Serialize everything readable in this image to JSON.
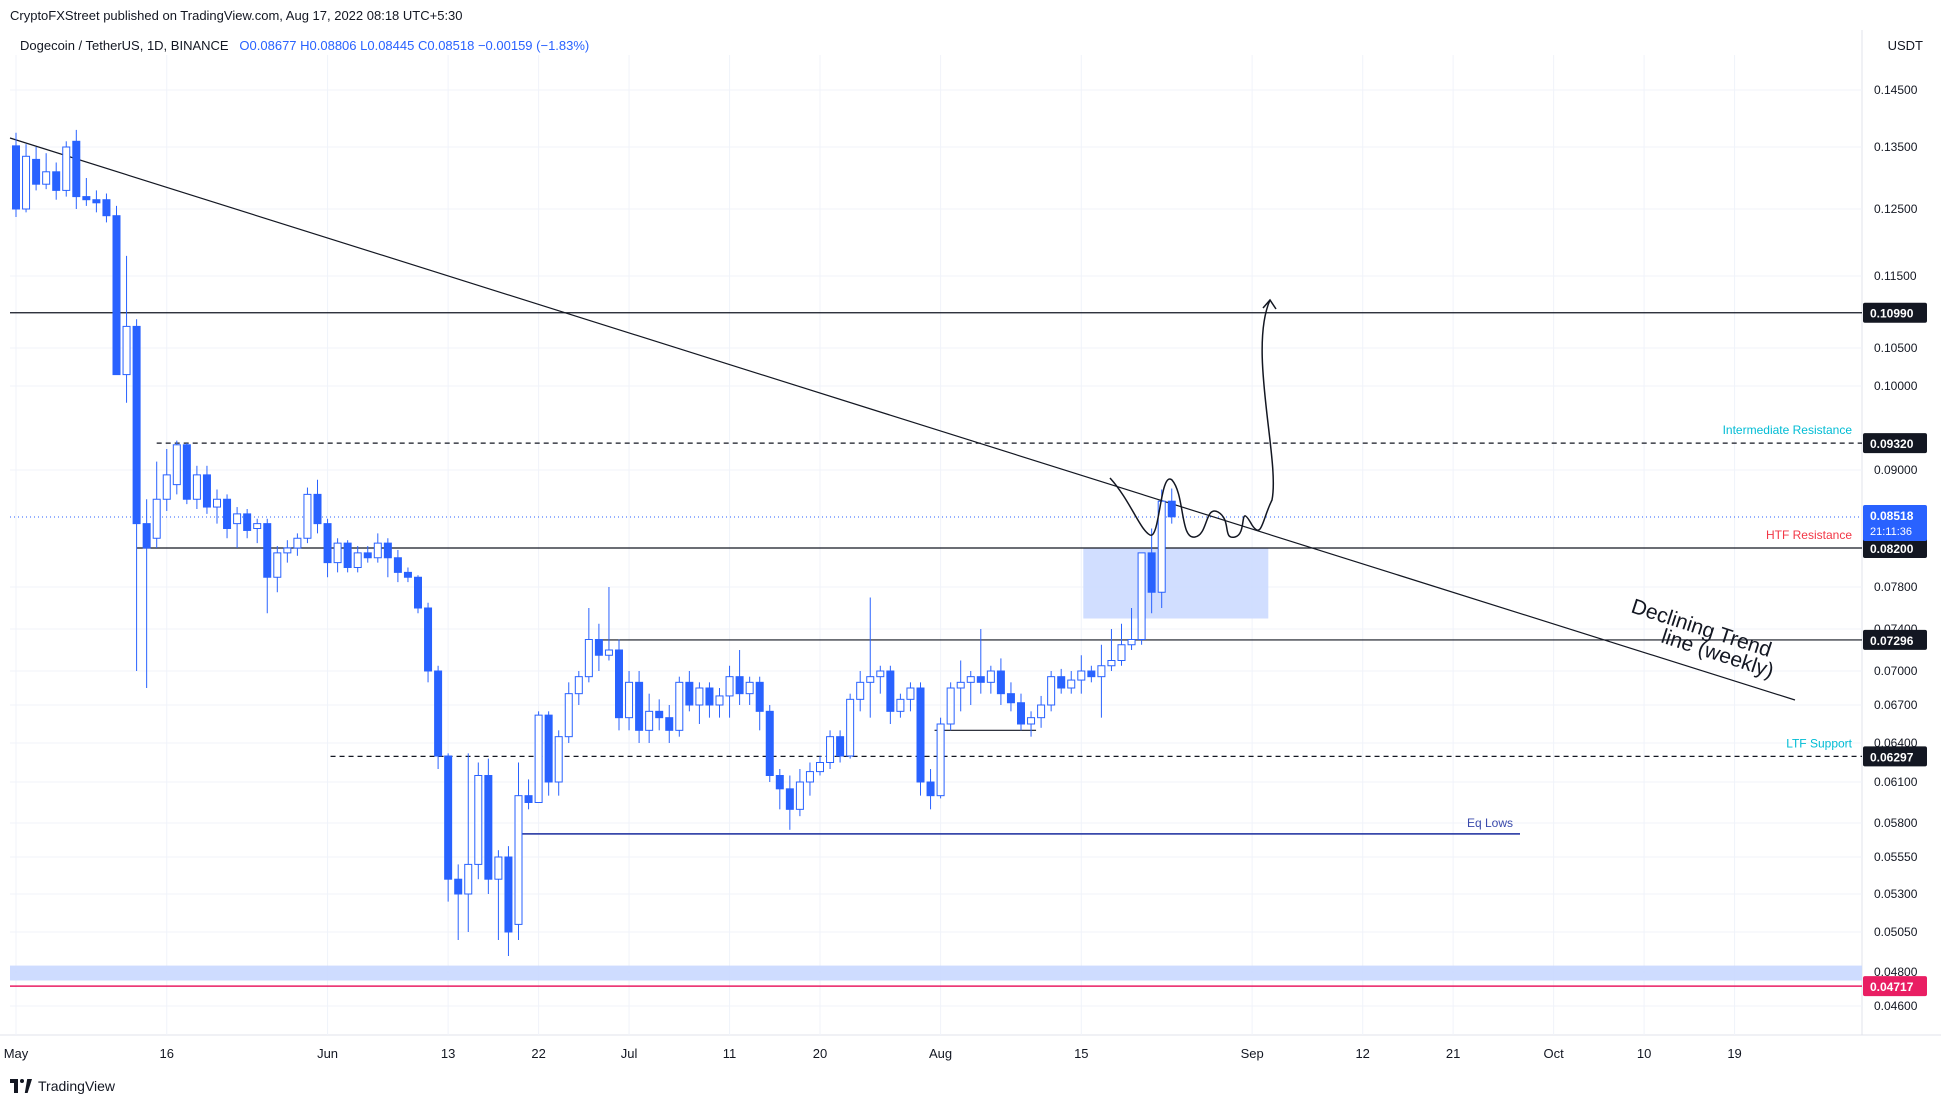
{
  "header": {
    "published": "CryptoFXStreet published on TradingView.com, Aug 17, 2022 08:18 UTC+5:30",
    "symbol": "Dogecoin / TetherUS, 1D, BINANCE",
    "ohlc": "O0.08677  H0.08806  L0.08445  C0.08518  −0.00159 (−1.83%)",
    "currency": "USDT"
  },
  "footer": {
    "brand": "TradingView",
    "logo_icon": "tradingview-logo-icon"
  },
  "colors": {
    "up": "#2962ff",
    "down": "#2962ff",
    "grid": "#f0f3fa",
    "text": "#131722",
    "support_label": "#00bcd4",
    "htf_label": "#f23645",
    "low_zone": "#c9d8ff",
    "eq_lows": "#3949ab",
    "red_level": "#e91e63",
    "last_price": "#2962ff"
  },
  "chart_data": {
    "type": "candlestick",
    "axis_ticks": [
      "0.14500",
      "0.13500",
      "0.12500",
      "0.11500",
      "0.10500",
      "0.10000",
      "0.09000",
      "0.07800",
      "0.07400",
      "0.07000",
      "0.06700",
      "0.06400",
      "0.06100",
      "0.05800",
      "0.05550",
      "0.05300",
      "0.05050",
      "0.04800",
      "0.04600"
    ],
    "x_ticks": [
      {
        "label": "May",
        "date": "2022-05-01"
      },
      {
        "label": "16",
        "date": "2022-05-16"
      },
      {
        "label": "Jun",
        "date": "2022-06-01"
      },
      {
        "label": "13",
        "date": "2022-06-13"
      },
      {
        "label": "22",
        "date": "2022-06-22"
      },
      {
        "label": "Jul",
        "date": "2022-07-01"
      },
      {
        "label": "11",
        "date": "2022-07-11"
      },
      {
        "label": "20",
        "date": "2022-07-20"
      },
      {
        "label": "Aug",
        "date": "2022-08-01"
      },
      {
        "label": "15",
        "date": "2022-08-15"
      },
      {
        "label": "Sep",
        "date": "2022-09-01"
      },
      {
        "label": "12",
        "date": "2022-09-12"
      },
      {
        "label": "21",
        "date": "2022-09-21"
      },
      {
        "label": "Oct",
        "date": "2022-10-01"
      },
      {
        "label": "10",
        "date": "2022-10-10"
      },
      {
        "label": "19",
        "date": "2022-10-19"
      }
    ],
    "levels": [
      {
        "value": "0.10990",
        "price": 0.1099,
        "style": "solid",
        "color": "#131722"
      },
      {
        "value": "0.09320",
        "price": 0.0932,
        "style": "dashed",
        "color": "#131722",
        "label": "Intermediate Resistance",
        "label_color": "#00bcd4"
      },
      {
        "value": "0.08200",
        "price": 0.082,
        "style": "solid",
        "color": "#131722",
        "label": "HTF Resistance",
        "label_color": "#f23645"
      },
      {
        "value": "0.07296",
        "price": 0.07296,
        "style": "solid",
        "color": "#131722"
      },
      {
        "value": "0.06297",
        "price": 0.06297,
        "style": "dashed",
        "color": "#131722",
        "label": "LTF Support",
        "label_color": "#00bcd4"
      },
      {
        "value": "0.04717",
        "price": 0.04717,
        "style": "solid",
        "color": "#e91e63"
      }
    ],
    "last_price": {
      "value": "0.08518",
      "countdown": "21:11:36",
      "price": 0.08518
    },
    "annotations": {
      "trendline_label_1": "Declining Trend",
      "trendline_label_2": "line (weekly)",
      "eq_lows": "Eq Lows"
    },
    "candles": [
      {
        "date": "2022-05-01",
        "o": 0.1352,
        "h": 0.1375,
        "l": 0.1238,
        "c": 0.125
      },
      {
        "date": "2022-05-02",
        "o": 0.125,
        "h": 0.1355,
        "l": 0.1245,
        "c": 0.1335
      },
      {
        "date": "2022-05-03",
        "o": 0.133,
        "h": 0.135,
        "l": 0.128,
        "c": 0.129
      },
      {
        "date": "2022-05-04",
        "o": 0.129,
        "h": 0.134,
        "l": 0.1282,
        "c": 0.131
      },
      {
        "date": "2022-05-05",
        "o": 0.131,
        "h": 0.1325,
        "l": 0.1265,
        "c": 0.128
      },
      {
        "date": "2022-05-06",
        "o": 0.128,
        "h": 0.136,
        "l": 0.127,
        "c": 0.135
      },
      {
        "date": "2022-05-07",
        "o": 0.136,
        "h": 0.138,
        "l": 0.125,
        "c": 0.127
      },
      {
        "date": "2022-05-08",
        "o": 0.127,
        "h": 0.13,
        "l": 0.1255,
        "c": 0.1265
      },
      {
        "date": "2022-05-09",
        "o": 0.1265,
        "h": 0.128,
        "l": 0.1245,
        "c": 0.126
      },
      {
        "date": "2022-05-10",
        "o": 0.1265,
        "h": 0.1275,
        "l": 0.123,
        "c": 0.124
      },
      {
        "date": "2022-05-11",
        "o": 0.124,
        "h": 0.1255,
        "l": 0.102,
        "c": 0.1015
      },
      {
        "date": "2022-05-12",
        "o": 0.1015,
        "h": 0.118,
        "l": 0.098,
        "c": 0.108
      },
      {
        "date": "2022-05-13",
        "o": 0.108,
        "h": 0.109,
        "l": 0.07,
        "c": 0.0845
      },
      {
        "date": "2022-05-14",
        "o": 0.0845,
        "h": 0.087,
        "l": 0.0685,
        "c": 0.082
      },
      {
        "date": "2022-05-15",
        "o": 0.083,
        "h": 0.091,
        "l": 0.082,
        "c": 0.087
      },
      {
        "date": "2022-05-16",
        "o": 0.087,
        "h": 0.0925,
        "l": 0.0858,
        "c": 0.0895
      },
      {
        "date": "2022-05-17",
        "o": 0.0885,
        "h": 0.0935,
        "l": 0.0875,
        "c": 0.093
      },
      {
        "date": "2022-05-18",
        "o": 0.093,
        "h": 0.0932,
        "l": 0.0865,
        "c": 0.087
      },
      {
        "date": "2022-05-19",
        "o": 0.087,
        "h": 0.0905,
        "l": 0.086,
        "c": 0.0895
      },
      {
        "date": "2022-05-20",
        "o": 0.0895,
        "h": 0.0905,
        "l": 0.0855,
        "c": 0.0862
      },
      {
        "date": "2022-05-21",
        "o": 0.0862,
        "h": 0.088,
        "l": 0.0845,
        "c": 0.087
      },
      {
        "date": "2022-05-22",
        "o": 0.087,
        "h": 0.0875,
        "l": 0.083,
        "c": 0.084
      },
      {
        "date": "2022-05-23",
        "o": 0.0845,
        "h": 0.0862,
        "l": 0.082,
        "c": 0.0855
      },
      {
        "date": "2022-05-24",
        "o": 0.0855,
        "h": 0.086,
        "l": 0.083,
        "c": 0.0838
      },
      {
        "date": "2022-05-25",
        "o": 0.084,
        "h": 0.085,
        "l": 0.0825,
        "c": 0.0845
      },
      {
        "date": "2022-05-26",
        "o": 0.0845,
        "h": 0.085,
        "l": 0.0755,
        "c": 0.079
      },
      {
        "date": "2022-05-27",
        "o": 0.079,
        "h": 0.0822,
        "l": 0.0775,
        "c": 0.0815
      },
      {
        "date": "2022-05-28",
        "o": 0.0815,
        "h": 0.0828,
        "l": 0.0805,
        "c": 0.082
      },
      {
        "date": "2022-05-29",
        "o": 0.082,
        "h": 0.0835,
        "l": 0.0812,
        "c": 0.083
      },
      {
        "date": "2022-05-30",
        "o": 0.083,
        "h": 0.0882,
        "l": 0.0825,
        "c": 0.0875
      },
      {
        "date": "2022-05-31",
        "o": 0.0875,
        "h": 0.089,
        "l": 0.0835,
        "c": 0.0845
      },
      {
        "date": "2022-06-01",
        "o": 0.0845,
        "h": 0.085,
        "l": 0.079,
        "c": 0.0805
      },
      {
        "date": "2022-06-02",
        "o": 0.0805,
        "h": 0.083,
        "l": 0.0795,
        "c": 0.0825
      },
      {
        "date": "2022-06-03",
        "o": 0.0825,
        "h": 0.0828,
        "l": 0.0795,
        "c": 0.08
      },
      {
        "date": "2022-06-04",
        "o": 0.08,
        "h": 0.0822,
        "l": 0.0795,
        "c": 0.0815
      },
      {
        "date": "2022-06-05",
        "o": 0.0815,
        "h": 0.0822,
        "l": 0.0805,
        "c": 0.081
      },
      {
        "date": "2022-06-06",
        "o": 0.081,
        "h": 0.0835,
        "l": 0.0805,
        "c": 0.0825
      },
      {
        "date": "2022-06-07",
        "o": 0.0825,
        "h": 0.083,
        "l": 0.079,
        "c": 0.081
      },
      {
        "date": "2022-06-08",
        "o": 0.081,
        "h": 0.0818,
        "l": 0.0785,
        "c": 0.0795
      },
      {
        "date": "2022-06-09",
        "o": 0.0795,
        "h": 0.08,
        "l": 0.0785,
        "c": 0.079
      },
      {
        "date": "2022-06-10",
        "o": 0.079,
        "h": 0.0792,
        "l": 0.0755,
        "c": 0.076
      },
      {
        "date": "2022-06-11",
        "o": 0.076,
        "h": 0.0765,
        "l": 0.069,
        "c": 0.07
      },
      {
        "date": "2022-06-12",
        "o": 0.07,
        "h": 0.0705,
        "l": 0.062,
        "c": 0.063
      },
      {
        "date": "2022-06-13",
        "o": 0.063,
        "h": 0.0632,
        "l": 0.0525,
        "c": 0.054
      },
      {
        "date": "2022-06-14",
        "o": 0.054,
        "h": 0.055,
        "l": 0.05,
        "c": 0.053
      },
      {
        "date": "2022-06-15",
        "o": 0.053,
        "h": 0.0632,
        "l": 0.0505,
        "c": 0.055
      },
      {
        "date": "2022-06-16",
        "o": 0.055,
        "h": 0.0625,
        "l": 0.054,
        "c": 0.0615
      },
      {
        "date": "2022-06-17",
        "o": 0.0615,
        "h": 0.0628,
        "l": 0.053,
        "c": 0.054
      },
      {
        "date": "2022-06-18",
        "o": 0.054,
        "h": 0.056,
        "l": 0.05,
        "c": 0.0555
      },
      {
        "date": "2022-06-19",
        "o": 0.0555,
        "h": 0.0563,
        "l": 0.049,
        "c": 0.0505
      },
      {
        "date": "2022-06-20",
        "o": 0.051,
        "h": 0.0625,
        "l": 0.05,
        "c": 0.06
      },
      {
        "date": "2022-06-21",
        "o": 0.06,
        "h": 0.0612,
        "l": 0.059,
        "c": 0.0595
      },
      {
        "date": "2022-06-22",
        "o": 0.0595,
        "h": 0.0665,
        "l": 0.0595,
        "c": 0.0662
      },
      {
        "date": "2022-06-23",
        "o": 0.0662,
        "h": 0.0665,
        "l": 0.06,
        "c": 0.061
      },
      {
        "date": "2022-06-24",
        "o": 0.061,
        "h": 0.065,
        "l": 0.06,
        "c": 0.0645
      },
      {
        "date": "2022-06-25",
        "o": 0.0645,
        "h": 0.069,
        "l": 0.064,
        "c": 0.068
      },
      {
        "date": "2022-06-26",
        "o": 0.068,
        "h": 0.07,
        "l": 0.067,
        "c": 0.0695
      },
      {
        "date": "2022-06-27",
        "o": 0.0695,
        "h": 0.076,
        "l": 0.069,
        "c": 0.073
      },
      {
        "date": "2022-06-28",
        "o": 0.073,
        "h": 0.0745,
        "l": 0.07,
        "c": 0.0715
      },
      {
        "date": "2022-06-29",
        "o": 0.0715,
        "h": 0.078,
        "l": 0.071,
        "c": 0.072
      },
      {
        "date": "2022-06-30",
        "o": 0.072,
        "h": 0.073,
        "l": 0.065,
        "c": 0.066
      },
      {
        "date": "2022-07-01",
        "o": 0.066,
        "h": 0.07,
        "l": 0.065,
        "c": 0.069
      },
      {
        "date": "2022-07-02",
        "o": 0.069,
        "h": 0.07,
        "l": 0.064,
        "c": 0.065
      },
      {
        "date": "2022-07-03",
        "o": 0.065,
        "h": 0.068,
        "l": 0.064,
        "c": 0.0665
      },
      {
        "date": "2022-07-04",
        "o": 0.0665,
        "h": 0.0675,
        "l": 0.065,
        "c": 0.066
      },
      {
        "date": "2022-07-05",
        "o": 0.066,
        "h": 0.067,
        "l": 0.064,
        "c": 0.065
      },
      {
        "date": "2022-07-06",
        "o": 0.065,
        "h": 0.0695,
        "l": 0.0645,
        "c": 0.069
      },
      {
        "date": "2022-07-07",
        "o": 0.069,
        "h": 0.07,
        "l": 0.0665,
        "c": 0.067
      },
      {
        "date": "2022-07-08",
        "o": 0.067,
        "h": 0.069,
        "l": 0.0655,
        "c": 0.0685
      },
      {
        "date": "2022-07-09",
        "o": 0.0685,
        "h": 0.069,
        "l": 0.066,
        "c": 0.067
      },
      {
        "date": "2022-07-10",
        "o": 0.067,
        "h": 0.0685,
        "l": 0.066,
        "c": 0.0678
      },
      {
        "date": "2022-07-11",
        "o": 0.0678,
        "h": 0.0705,
        "l": 0.066,
        "c": 0.0695
      },
      {
        "date": "2022-07-12",
        "o": 0.0695,
        "h": 0.072,
        "l": 0.067,
        "c": 0.068
      },
      {
        "date": "2022-07-13",
        "o": 0.068,
        "h": 0.0695,
        "l": 0.067,
        "c": 0.069
      },
      {
        "date": "2022-07-14",
        "o": 0.069,
        "h": 0.0695,
        "l": 0.065,
        "c": 0.0665
      },
      {
        "date": "2022-07-15",
        "o": 0.0665,
        "h": 0.067,
        "l": 0.061,
        "c": 0.0615
      },
      {
        "date": "2022-07-16",
        "o": 0.0615,
        "h": 0.062,
        "l": 0.059,
        "c": 0.0605
      },
      {
        "date": "2022-07-17",
        "o": 0.0605,
        "h": 0.0615,
        "l": 0.0575,
        "c": 0.059
      },
      {
        "date": "2022-07-18",
        "o": 0.059,
        "h": 0.062,
        "l": 0.0585,
        "c": 0.061
      },
      {
        "date": "2022-07-19",
        "o": 0.061,
        "h": 0.0625,
        "l": 0.06,
        "c": 0.0618
      },
      {
        "date": "2022-07-20",
        "o": 0.0618,
        "h": 0.063,
        "l": 0.0615,
        "c": 0.0625
      },
      {
        "date": "2022-07-21",
        "o": 0.0625,
        "h": 0.065,
        "l": 0.062,
        "c": 0.0645
      },
      {
        "date": "2022-07-22",
        "o": 0.0645,
        "h": 0.065,
        "l": 0.0625,
        "c": 0.063
      },
      {
        "date": "2022-07-23",
        "o": 0.063,
        "h": 0.068,
        "l": 0.0628,
        "c": 0.0675
      },
      {
        "date": "2022-07-24",
        "o": 0.0675,
        "h": 0.07,
        "l": 0.0665,
        "c": 0.069
      },
      {
        "date": "2022-07-25",
        "o": 0.069,
        "h": 0.077,
        "l": 0.066,
        "c": 0.0695
      },
      {
        "date": "2022-07-26",
        "o": 0.0695,
        "h": 0.0705,
        "l": 0.068,
        "c": 0.07
      },
      {
        "date": "2022-07-27",
        "o": 0.07,
        "h": 0.0705,
        "l": 0.0655,
        "c": 0.0665
      },
      {
        "date": "2022-07-28",
        "o": 0.0665,
        "h": 0.068,
        "l": 0.066,
        "c": 0.0675
      },
      {
        "date": "2022-07-29",
        "o": 0.0675,
        "h": 0.069,
        "l": 0.0665,
        "c": 0.0685
      },
      {
        "date": "2022-07-30",
        "o": 0.0685,
        "h": 0.069,
        "l": 0.06,
        "c": 0.061
      },
      {
        "date": "2022-07-31",
        "o": 0.061,
        "h": 0.062,
        "l": 0.059,
        "c": 0.06
      },
      {
        "date": "2022-08-01",
        "o": 0.06,
        "h": 0.066,
        "l": 0.0598,
        "c": 0.0655
      },
      {
        "date": "2022-08-02",
        "o": 0.0655,
        "h": 0.069,
        "l": 0.065,
        "c": 0.0685
      },
      {
        "date": "2022-08-03",
        "o": 0.0685,
        "h": 0.071,
        "l": 0.0665,
        "c": 0.069
      },
      {
        "date": "2022-08-04",
        "o": 0.069,
        "h": 0.07,
        "l": 0.067,
        "c": 0.0695
      },
      {
        "date": "2022-08-05",
        "o": 0.0695,
        "h": 0.074,
        "l": 0.068,
        "c": 0.069
      },
      {
        "date": "2022-08-06",
        "o": 0.069,
        "h": 0.0705,
        "l": 0.068,
        "c": 0.07
      },
      {
        "date": "2022-08-07",
        "o": 0.07,
        "h": 0.0712,
        "l": 0.067,
        "c": 0.068
      },
      {
        "date": "2022-08-08",
        "o": 0.068,
        "h": 0.069,
        "l": 0.0665,
        "c": 0.0672
      },
      {
        "date": "2022-08-09",
        "o": 0.0672,
        "h": 0.068,
        "l": 0.065,
        "c": 0.0655
      },
      {
        "date": "2022-08-10",
        "o": 0.0655,
        "h": 0.0665,
        "l": 0.0645,
        "c": 0.066
      },
      {
        "date": "2022-08-11",
        "o": 0.066,
        "h": 0.0678,
        "l": 0.0652,
        "c": 0.067
      },
      {
        "date": "2022-08-12",
        "o": 0.067,
        "h": 0.07,
        "l": 0.0665,
        "c": 0.0695
      },
      {
        "date": "2022-08-13",
        "o": 0.0695,
        "h": 0.0702,
        "l": 0.068,
        "c": 0.0685
      },
      {
        "date": "2022-08-14",
        "o": 0.0685,
        "h": 0.07,
        "l": 0.068,
        "c": 0.0692
      },
      {
        "date": "2022-08-15",
        "o": 0.0692,
        "h": 0.0715,
        "l": 0.068,
        "c": 0.07
      },
      {
        "date": "2022-08-16",
        "o": 0.07,
        "h": 0.0705,
        "l": 0.069,
        "c": 0.0695
      },
      {
        "date": "2022-08-17",
        "o": 0.0695,
        "h": 0.0725,
        "l": 0.066,
        "c": 0.0705
      },
      {
        "date": "2022-08-18",
        "o": 0.0705,
        "h": 0.074,
        "l": 0.07,
        "c": 0.071
      },
      {
        "date": "2022-08-19",
        "o": 0.071,
        "h": 0.0745,
        "l": 0.0705,
        "c": 0.0725
      },
      {
        "date": "2022-08-20",
        "o": 0.0725,
        "h": 0.076,
        "l": 0.072,
        "c": 0.073
      },
      {
        "date": "2022-08-21",
        "o": 0.073,
        "h": 0.0815,
        "l": 0.0725,
        "c": 0.0815
      },
      {
        "date": "2022-08-22",
        "o": 0.0815,
        "h": 0.084,
        "l": 0.0755,
        "c": 0.0775
      },
      {
        "date": "2022-08-23",
        "o": 0.0775,
        "h": 0.088,
        "l": 0.076,
        "c": 0.0868
      },
      {
        "date": "2022-08-24",
        "o": 0.0868,
        "h": 0.0881,
        "l": 0.0845,
        "c": 0.0852
      }
    ]
  }
}
